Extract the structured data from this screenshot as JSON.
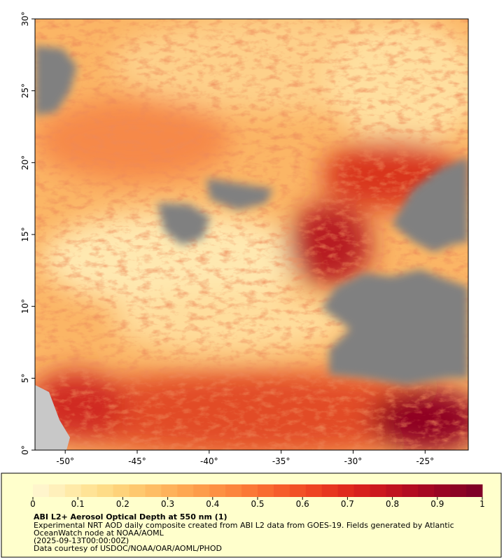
{
  "map": {
    "xlim": [
      -52.1,
      -22
    ],
    "ylim": [
      0,
      30
    ],
    "xticks": [
      {
        "value": -50,
        "label": "-50°"
      },
      {
        "value": -45,
        "label": "-45°"
      },
      {
        "value": -40,
        "label": "-40°"
      },
      {
        "value": -35,
        "label": "-35°"
      },
      {
        "value": -30,
        "label": "-30°"
      },
      {
        "value": -25,
        "label": "-25°"
      }
    ],
    "yticks": [
      {
        "value": 0,
        "label": "0°"
      },
      {
        "value": 5,
        "label": "5°"
      },
      {
        "value": 10,
        "label": "10°"
      },
      {
        "value": 15,
        "label": "15°"
      },
      {
        "value": 20,
        "label": "20°"
      },
      {
        "value": 25,
        "label": "25°"
      },
      {
        "value": 30,
        "label": "30°"
      }
    ]
  },
  "colorbar": {
    "range": [
      0,
      1
    ],
    "ticks": [
      0,
      0.1,
      0.2,
      0.3,
      0.4,
      0.5,
      0.6,
      0.7,
      0.8,
      0.9,
      1
    ],
    "colors": [
      "#fff5cc",
      "#fff0bb",
      "#ffeaa8",
      "#ffe396",
      "#fedc87",
      "#fed27a",
      "#fec86e",
      "#febd64",
      "#feb25b",
      "#fea752",
      "#fd9c4a",
      "#fd9043",
      "#fc853d",
      "#fb7836",
      "#f96b30",
      "#f65d2b",
      "#f25026",
      "#ee4322",
      "#e7361f",
      "#e02a1d",
      "#d7201d",
      "#cc181e",
      "#c0121f",
      "#b30c21",
      "#a60822",
      "#990523",
      "#8c0324",
      "#800026"
    ],
    "caption": {
      "title": "ABI L2+ Aerosol Optical Depth at 550 nm (1)",
      "lines": [
        "Experimental NRT AOD daily composite created from ABI L2 data from GOES-19. Fields generated by Atlantic",
        "OceanWatch node at NOAA/AOML",
        "(2025-09-13T00:00:00Z)",
        "Data courtesy of USDOC/NOAA/OAR/AOML/PHOD"
      ]
    }
  }
}
